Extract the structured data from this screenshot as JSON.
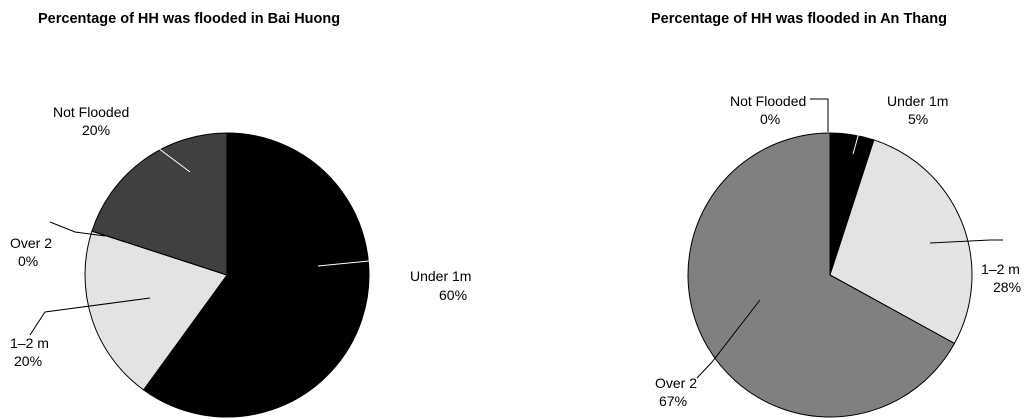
{
  "chart_data": [
    {
      "type": "pie",
      "title": "Percentage of HH was flooded in Bai Huong",
      "slices": [
        {
          "name": "Under 1m",
          "value": 60,
          "label": "60%",
          "color": "#000000"
        },
        {
          "name": "1–2 m",
          "value": 20,
          "label": "20%",
          "color": "#e3e3e3"
        },
        {
          "name": "Over 2",
          "value": 0,
          "label": "0%",
          "color": "#808080"
        },
        {
          "name": "Not Flooded",
          "value": 20,
          "label": "20%",
          "color": "#404040"
        }
      ]
    },
    {
      "type": "pie",
      "title": "Percentage of HH was flooded in An Thang",
      "slices": [
        {
          "name": "Under 1m",
          "value": 5,
          "label": "5%",
          "color": "#000000"
        },
        {
          "name": "1–2 m",
          "value": 28,
          "label": "28%",
          "color": "#e3e3e3"
        },
        {
          "name": "Over 2",
          "value": 67,
          "label": "67%",
          "color": "#808080"
        },
        {
          "name": "Not Flooded",
          "value": 0,
          "label": "0%",
          "color": "#404040"
        }
      ]
    }
  ]
}
